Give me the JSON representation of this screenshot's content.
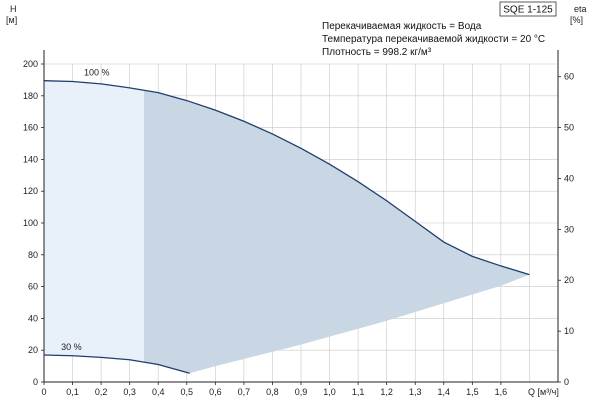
{
  "chart_data": {
    "type": "line",
    "title": "SQE 1-125",
    "xlabel": "Q [м³/ч]",
    "ylabel": "H\n[м]",
    "ylabel_right": "eta\n[%]",
    "xlim": [
      0,
      1.8
    ],
    "ylim": [
      0,
      200
    ],
    "ylim_right": [
      0,
      62.5
    ],
    "x_ticks": [
      0,
      0.1,
      0.2,
      0.3,
      0.4,
      0.5,
      0.6,
      0.7,
      0.8,
      0.9,
      1.0,
      1.1,
      1.2,
      1.3,
      1.4,
      1.5,
      1.6
    ],
    "x_tick_labels": [
      "0",
      "0,1",
      "0,2",
      "0,3",
      "0,4",
      "0,5",
      "0,6",
      "0,7",
      "0,8",
      "0,9",
      "1,0",
      "1,1",
      "1,2",
      "1,3",
      "1,4",
      "1,5",
      "1,6"
    ],
    "y_ticks": [
      0,
      20,
      40,
      60,
      80,
      100,
      120,
      140,
      160,
      180,
      200
    ],
    "y_tick_labels": [
      "0",
      "20",
      "40",
      "60",
      "80",
      "100",
      "120",
      "140",
      "160",
      "180",
      "200"
    ],
    "y_right_ticks": [
      0,
      10,
      20,
      30,
      40,
      50,
      60
    ],
    "y_right_tick_labels": [
      "0",
      "10",
      "20",
      "30",
      "40",
      "50",
      "60"
    ],
    "grid": true,
    "info_lines": [
      "Перекачиваемая жидкость = Вода",
      "Температура перекачиваемой жидкости = 20 °C",
      "Плотность = 998.2 кг/м³"
    ],
    "series": [
      {
        "name": "100 %",
        "x": [
          0,
          0.1,
          0.2,
          0.3,
          0.35,
          0.4,
          0.5,
          0.6,
          0.7,
          0.8,
          0.9,
          1.0,
          1.1,
          1.2,
          1.3,
          1.4,
          1.5,
          1.6,
          1.7
        ],
        "y": [
          189.5,
          189,
          187.5,
          185,
          183.5,
          182,
          177,
          171,
          164,
          156,
          147,
          137,
          126,
          114,
          101,
          88,
          79,
          73,
          67.5
        ]
      },
      {
        "name": "30 %",
        "x": [
          0,
          0.1,
          0.2,
          0.3,
          0.35,
          0.4,
          0.45,
          0.51
        ],
        "y": [
          17,
          16.5,
          15.5,
          14,
          12.5,
          11,
          8.5,
          5.5
        ]
      }
    ],
    "operating_region": {
      "x_left": 0.35,
      "lower_x": [
        0.51,
        0.6,
        0.7,
        0.8,
        0.9,
        1.0,
        1.1,
        1.2,
        1.3,
        1.4,
        1.5,
        1.6,
        1.7
      ],
      "lower_y": [
        5.5,
        10,
        14.5,
        19,
        23.5,
        28.5,
        33.5,
        38.5,
        44,
        49.5,
        55,
        60.5,
        67.5
      ]
    }
  },
  "colors": {
    "curve": "#1f3e6e",
    "region_dark": "#c9d6e3",
    "region_light": "#e8f0fa",
    "grid": "#c8c8c8",
    "axis": "#222222"
  }
}
